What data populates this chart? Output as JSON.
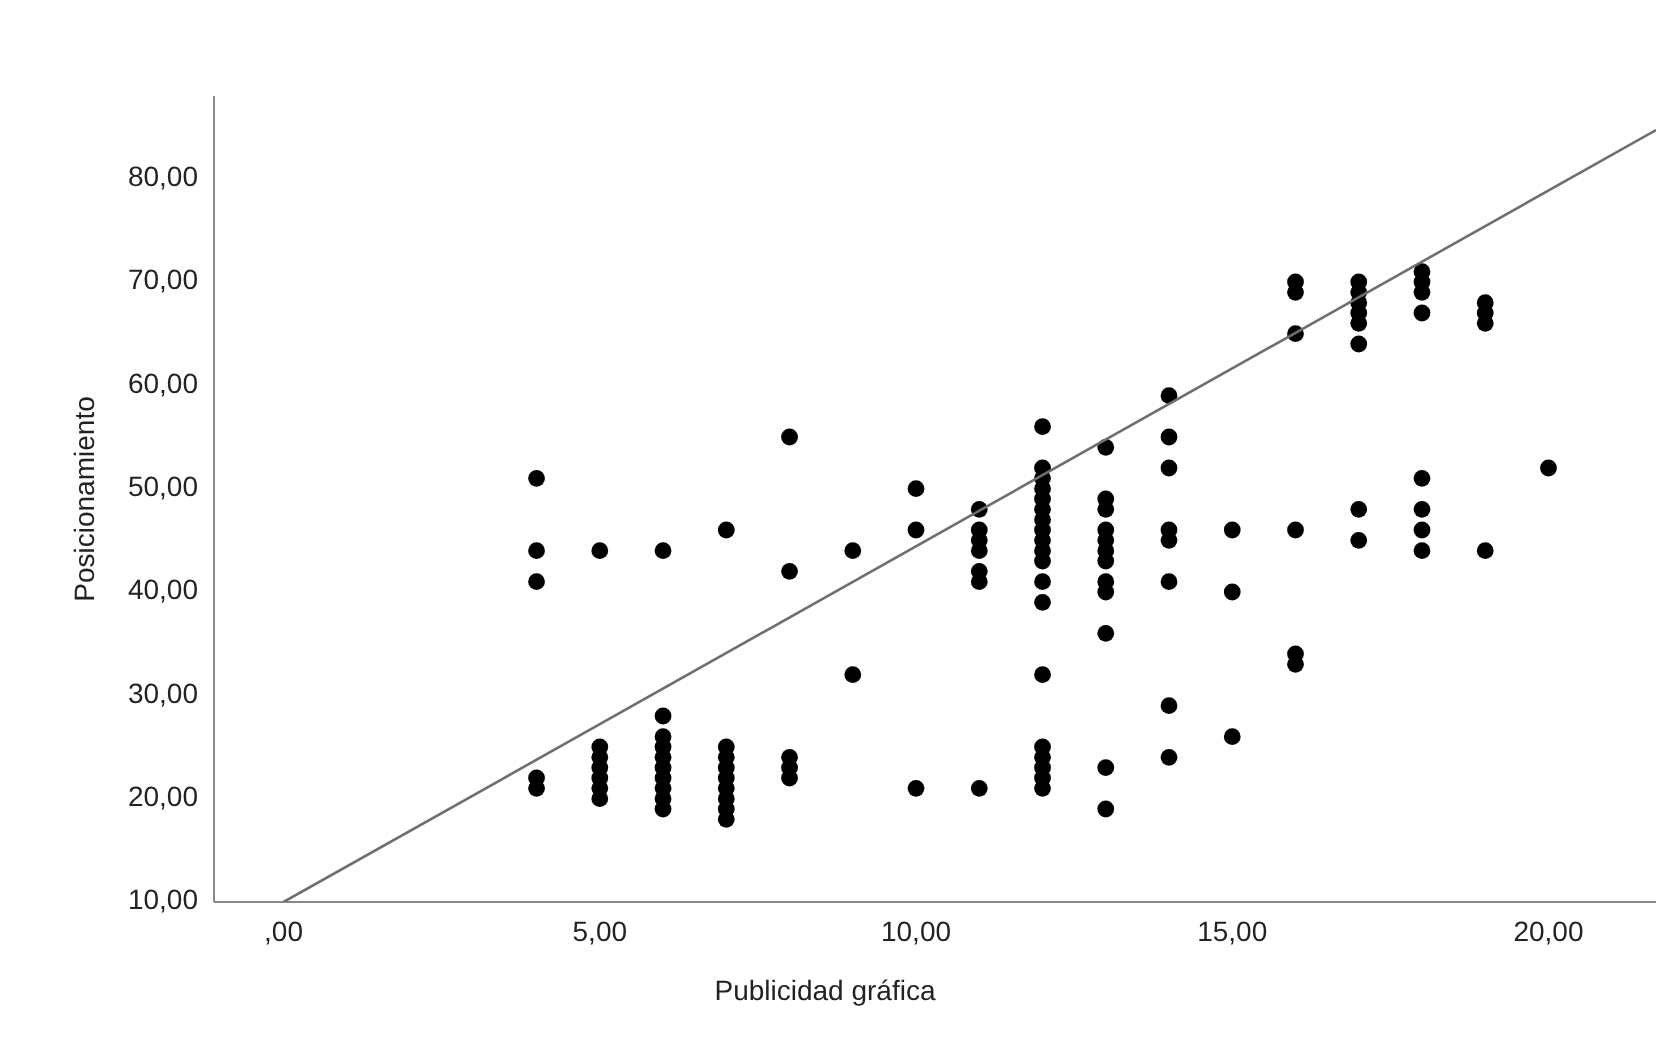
{
  "chart_data": {
    "type": "scatter",
    "xlabel": "Publicidad gráfica",
    "ylabel": "Posicionamiento",
    "xlim": [
      -1.1,
      21.7
    ],
    "ylim": [
      10,
      88
    ],
    "xticks": [
      {
        "value": 0,
        "label": ",00"
      },
      {
        "value": 5,
        "label": "5,00"
      },
      {
        "value": 10,
        "label": "10,00"
      },
      {
        "value": 15,
        "label": "15,00"
      },
      {
        "value": 20,
        "label": "20,00"
      }
    ],
    "yticks": [
      {
        "value": 10,
        "label": "10,00"
      },
      {
        "value": 20,
        "label": "20,00"
      },
      {
        "value": 30,
        "label": "30,00"
      },
      {
        "value": 40,
        "label": "40,00"
      },
      {
        "value": 50,
        "label": "50,00"
      },
      {
        "value": 60,
        "label": "60,00"
      },
      {
        "value": 70,
        "label": "70,00"
      },
      {
        "value": 80,
        "label": "80,00"
      }
    ],
    "grid": false,
    "marker": "circle",
    "series": [
      {
        "color": "#000000",
        "x": [
          4,
          4,
          4,
          4,
          4,
          5,
          5,
          5,
          5,
          5,
          5,
          5,
          6,
          6,
          6,
          6,
          6,
          6,
          6,
          6,
          6,
          6,
          7,
          7,
          7,
          7,
          7,
          7,
          7,
          7,
          7,
          8,
          8,
          8,
          8,
          8,
          9,
          9,
          10,
          10,
          10,
          11,
          11,
          11,
          11,
          11,
          11,
          11,
          12,
          12,
          12,
          12,
          12,
          12,
          12,
          12,
          12,
          12,
          12,
          12,
          12,
          12,
          12,
          12,
          12,
          12,
          12,
          13,
          13,
          13,
          13,
          13,
          13,
          13,
          13,
          13,
          13,
          13,
          13,
          14,
          14,
          14,
          14,
          14,
          14,
          14,
          14,
          15,
          15,
          15,
          16,
          16,
          16,
          16,
          16,
          16,
          17,
          17,
          17,
          17,
          17,
          17,
          17,
          17,
          18,
          18,
          18,
          18,
          18,
          18,
          18,
          18,
          19,
          19,
          19,
          19,
          20
        ],
        "values": [
          51,
          44,
          41,
          22,
          21,
          44,
          25,
          24,
          23,
          22,
          21,
          20,
          44,
          28,
          26,
          25,
          24,
          23,
          22,
          21,
          20,
          19,
          46,
          25,
          24,
          23,
          22,
          21,
          20,
          19,
          18,
          55,
          42,
          24,
          23,
          22,
          44,
          32,
          50,
          46,
          21,
          48,
          46,
          45,
          44,
          42,
          41,
          21,
          56,
          52,
          51,
          50,
          49,
          48,
          47,
          46,
          45,
          44,
          43,
          41,
          39,
          32,
          25,
          24,
          23,
          22,
          21,
          54,
          49,
          48,
          46,
          45,
          44,
          43,
          41,
          40,
          36,
          23,
          19,
          59,
          55,
          52,
          46,
          45,
          41,
          29,
          24,
          46,
          40,
          26,
          70,
          69,
          65,
          46,
          34,
          33,
          70,
          69,
          68,
          67,
          66,
          64,
          48,
          45,
          71,
          70,
          69,
          67,
          51,
          48,
          46,
          44,
          68,
          67,
          66,
          44,
          52
        ]
      },
      {
        "type": "line",
        "color": "#6e6e6e",
        "marker": "none",
        "line_style": "solid",
        "x": [
          0,
          21.7
        ],
        "values": [
          10,
          84.7
        ]
      }
    ]
  }
}
